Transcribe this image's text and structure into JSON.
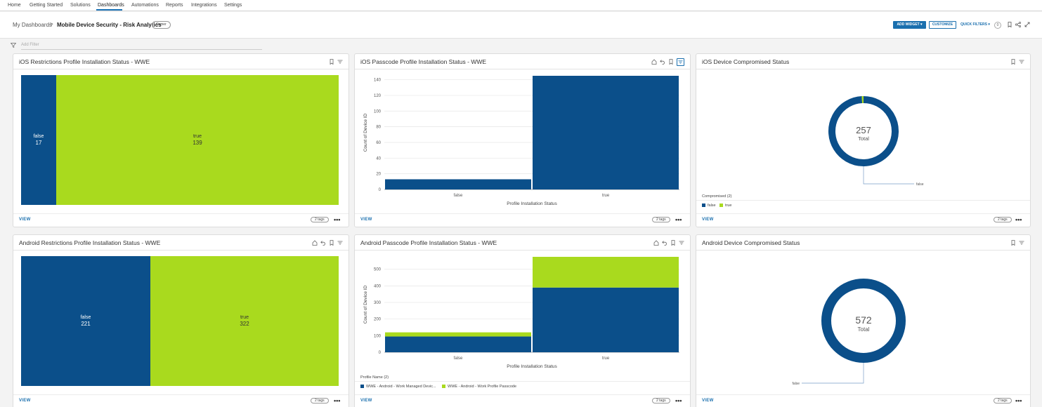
{
  "nav": {
    "items": [
      "Home",
      "Getting Started",
      "Solutions",
      "Dashboards",
      "Automations",
      "Reports",
      "Integrations",
      "Settings"
    ],
    "active": "Dashboards"
  },
  "header": {
    "breadcrumb_root": "My Dashboards",
    "breadcrumb_sep": ">",
    "title": "Mobile Device Security - Risk Analytics",
    "owner_badge": "Owner",
    "add_widget": "ADD WIDGET ▾",
    "customize": "CUSTOMIZE",
    "quick_filters": "QUICK FILTERS ▾",
    "quick_filters_count": "0"
  },
  "filter": {
    "placeholder": "Add Filter"
  },
  "colors": {
    "blue": "#0b4f8a",
    "green": "#a9da1e",
    "accent": "#1a6fae"
  },
  "cards": [
    {
      "title": "iOS Restrictions Profile Installation Status - WWE",
      "view": "VIEW",
      "tags": "2 tags",
      "more": "•••",
      "chart_data": {
        "type": "treemap",
        "items": [
          {
            "label": "false",
            "value": 17,
            "value_label": "17"
          },
          {
            "label": "true",
            "value": 139,
            "value_label": "139"
          }
        ]
      }
    },
    {
      "title": "iOS Passcode Profile Installation Status - WWE",
      "view": "VIEW",
      "tags": "2 tags",
      "more": "•••",
      "chart_data": {
        "type": "bar",
        "categories": [
          "false",
          "true"
        ],
        "values": [
          13,
          145
        ],
        "xlabel": "Profile Installation Status",
        "ylabel": "Count of Device ID",
        "ylim": [
          0,
          145
        ],
        "yticks": [
          "0",
          "20",
          "40",
          "60",
          "80",
          "100",
          "120",
          "140"
        ],
        "grid": true
      }
    },
    {
      "title": "iOS Device Compromised Status",
      "view": "VIEW",
      "tags": "2 tags",
      "more": "•••",
      "chart_data": {
        "type": "pie",
        "total": "257",
        "total_label": "Total",
        "slices": [
          {
            "label": "false",
            "value": 255
          },
          {
            "label": "true",
            "value": 2
          }
        ],
        "callout": "false",
        "legend_title": "Compromised (2)",
        "legend": [
          "false",
          "true"
        ]
      }
    },
    {
      "title": "Android Restrictions Profile Installation Status - WWE",
      "view": "VIEW",
      "tags": "2 tags",
      "more": "•••",
      "chart_data": {
        "type": "treemap",
        "items": [
          {
            "label": "false",
            "value": 221,
            "value_label": "221"
          },
          {
            "label": "true",
            "value": 322,
            "value_label": "322"
          }
        ]
      }
    },
    {
      "title": "Android Passcode Profile Installation Status - WWE",
      "view": "VIEW",
      "tags": "2 tags",
      "more": "•••",
      "chart_data": {
        "type": "bar",
        "stacked": true,
        "categories": [
          "false",
          "true"
        ],
        "series": [
          {
            "name": "WWE - Android - Work Managed Devic...",
            "values": [
              95,
              390
            ]
          },
          {
            "name": "WWE - Android - Work Profile Passcode",
            "values": [
              25,
              185
            ]
          }
        ],
        "xlabel": "Profile Installation Status",
        "ylabel": "Count of Device ID",
        "ylim": [
          0,
          575
        ],
        "yticks": [
          "0",
          "100",
          "200",
          "300",
          "400",
          "500"
        ],
        "legend_title": "Profile Name (2)",
        "grid": true
      }
    },
    {
      "title": "Android Device Compromised Status",
      "view": "VIEW",
      "tags": "2 tags",
      "more": "•••",
      "chart_data": {
        "type": "pie",
        "total": "572",
        "total_label": "Total",
        "slices": [
          {
            "label": "false",
            "value": 572
          }
        ],
        "callout": "false"
      }
    }
  ]
}
